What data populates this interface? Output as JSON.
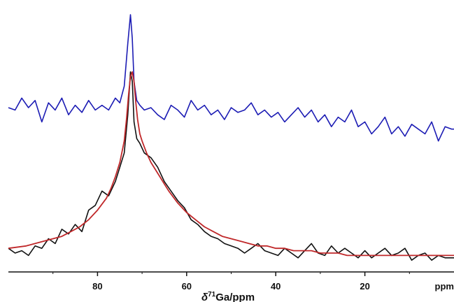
{
  "chart_data": {
    "type": "line",
    "title": "",
    "xlabel": {
      "symbol": "δ",
      "isotope_mass": "71",
      "rest": "Ga/ppm"
    },
    "ylabel": "",
    "x_reversed": true,
    "xlim": [
      100,
      0
    ],
    "x_ticks": [
      80,
      60,
      40,
      20
    ],
    "x_tick_labels": [
      "80",
      "60",
      "40",
      "20"
    ],
    "x_unit_label": "ppm",
    "grid": false,
    "legend": "none",
    "series": [
      {
        "color": "#1c1cb4",
        "role": "upper trace",
        "x": [
          100,
          98.5,
          97,
          95.5,
          94,
          92.5,
          91,
          89.5,
          88,
          86.5,
          85,
          83.5,
          82,
          80.5,
          79,
          77.5,
          76,
          75,
          74,
          73.2,
          72.6,
          72.2,
          71.8,
          71.2,
          70.5,
          69.5,
          68,
          66.5,
          65,
          63.5,
          62,
          60.5,
          59,
          57.5,
          56,
          54.5,
          53,
          51.5,
          50,
          48.5,
          47,
          45.5,
          44,
          42.5,
          41,
          39.5,
          38,
          36.5,
          35,
          33.5,
          32,
          30.5,
          29,
          27.5,
          26,
          24.5,
          23,
          21.5,
          20,
          18.5,
          17,
          15.5,
          14,
          12.5,
          11,
          9.5,
          8,
          6.5,
          5,
          3.5,
          2,
          0.5,
          0
        ],
        "y": [
          0.61,
          0.6,
          0.65,
          0.61,
          0.64,
          0.55,
          0.63,
          0.6,
          0.65,
          0.58,
          0.62,
          0.59,
          0.64,
          0.6,
          0.62,
          0.6,
          0.65,
          0.63,
          0.7,
          0.88,
          1.0,
          0.9,
          0.72,
          0.64,
          0.62,
          0.6,
          0.61,
          0.58,
          0.56,
          0.62,
          0.6,
          0.57,
          0.64,
          0.6,
          0.62,
          0.58,
          0.6,
          0.56,
          0.61,
          0.59,
          0.6,
          0.63,
          0.58,
          0.6,
          0.57,
          0.59,
          0.55,
          0.58,
          0.61,
          0.57,
          0.6,
          0.55,
          0.58,
          0.53,
          0.57,
          0.55,
          0.6,
          0.53,
          0.55,
          0.5,
          0.53,
          0.57,
          0.5,
          0.53,
          0.49,
          0.54,
          0.52,
          0.5,
          0.55,
          0.47,
          0.53,
          0.52,
          0.52
        ]
      },
      {
        "color": "#111111",
        "role": "lower trace",
        "x": [
          100,
          98.5,
          97,
          95.5,
          94,
          92.5,
          91,
          89.5,
          88,
          86.5,
          85,
          83.5,
          82,
          80.5,
          79,
          77.5,
          76,
          75,
          74,
          73.2,
          72.6,
          72.2,
          71.8,
          71.2,
          70.5,
          69.5,
          68,
          66.5,
          65,
          63.5,
          62,
          60.5,
          59,
          57.5,
          56,
          54.5,
          53,
          51.5,
          50,
          48.5,
          47,
          45.5,
          44,
          42.5,
          41,
          39.5,
          38,
          36.5,
          35,
          33.5,
          32,
          30.5,
          29,
          27.5,
          26,
          24.5,
          23,
          21.5,
          20,
          18.5,
          17,
          15.5,
          14,
          12.5,
          11,
          9.5,
          8,
          6.5,
          5,
          3.5,
          2,
          0.5,
          0
        ],
        "y": [
          0.02,
          0.0,
          0.01,
          -0.01,
          0.03,
          0.02,
          0.06,
          0.04,
          0.1,
          0.08,
          0.12,
          0.09,
          0.18,
          0.2,
          0.26,
          0.24,
          0.3,
          0.36,
          0.42,
          0.58,
          0.76,
          0.72,
          0.55,
          0.48,
          0.46,
          0.42,
          0.4,
          0.36,
          0.3,
          0.26,
          0.22,
          0.19,
          0.14,
          0.12,
          0.09,
          0.07,
          0.06,
          0.04,
          0.03,
          0.02,
          0.0,
          0.02,
          0.04,
          0.01,
          0.0,
          -0.01,
          0.02,
          0.0,
          -0.02,
          0.01,
          0.04,
          0.0,
          -0.01,
          0.03,
          0.0,
          0.02,
          0.0,
          -0.02,
          0.01,
          -0.02,
          0.0,
          0.02,
          -0.01,
          0.0,
          0.02,
          -0.03,
          -0.01,
          0.0,
          -0.03,
          -0.01,
          -0.02,
          -0.02,
          -0.02
        ]
      },
      {
        "color": "#c0282a",
        "role": "fit",
        "x": [
          100,
          96,
          92,
          88,
          86,
          84,
          82,
          80,
          78,
          77,
          76,
          75,
          74,
          73.5,
          73,
          72.6,
          72.2,
          71.8,
          71.4,
          71,
          70.5,
          70,
          69,
          68,
          67,
          66,
          65,
          64,
          62,
          60,
          58,
          56,
          54,
          52,
          50,
          48,
          46,
          44,
          42,
          40,
          38,
          36,
          34,
          32,
          30,
          28,
          26,
          24,
          22,
          20,
          18,
          16,
          14,
          12,
          10,
          8,
          6,
          4,
          2,
          0
        ],
        "y": [
          0.02,
          0.03,
          0.05,
          0.07,
          0.09,
          0.11,
          0.14,
          0.18,
          0.23,
          0.27,
          0.32,
          0.38,
          0.47,
          0.56,
          0.67,
          0.74,
          0.76,
          0.72,
          0.63,
          0.56,
          0.5,
          0.47,
          0.42,
          0.38,
          0.35,
          0.32,
          0.29,
          0.26,
          0.21,
          0.17,
          0.14,
          0.11,
          0.09,
          0.07,
          0.06,
          0.05,
          0.04,
          0.03,
          0.03,
          0.02,
          0.02,
          0.01,
          0.01,
          0.01,
          0.0,
          0.0,
          0.0,
          -0.01,
          -0.01,
          -0.01,
          -0.01,
          -0.01,
          -0.01,
          -0.01,
          -0.01,
          -0.01,
          -0.01,
          -0.01,
          -0.01,
          -0.01
        ]
      }
    ]
  }
}
